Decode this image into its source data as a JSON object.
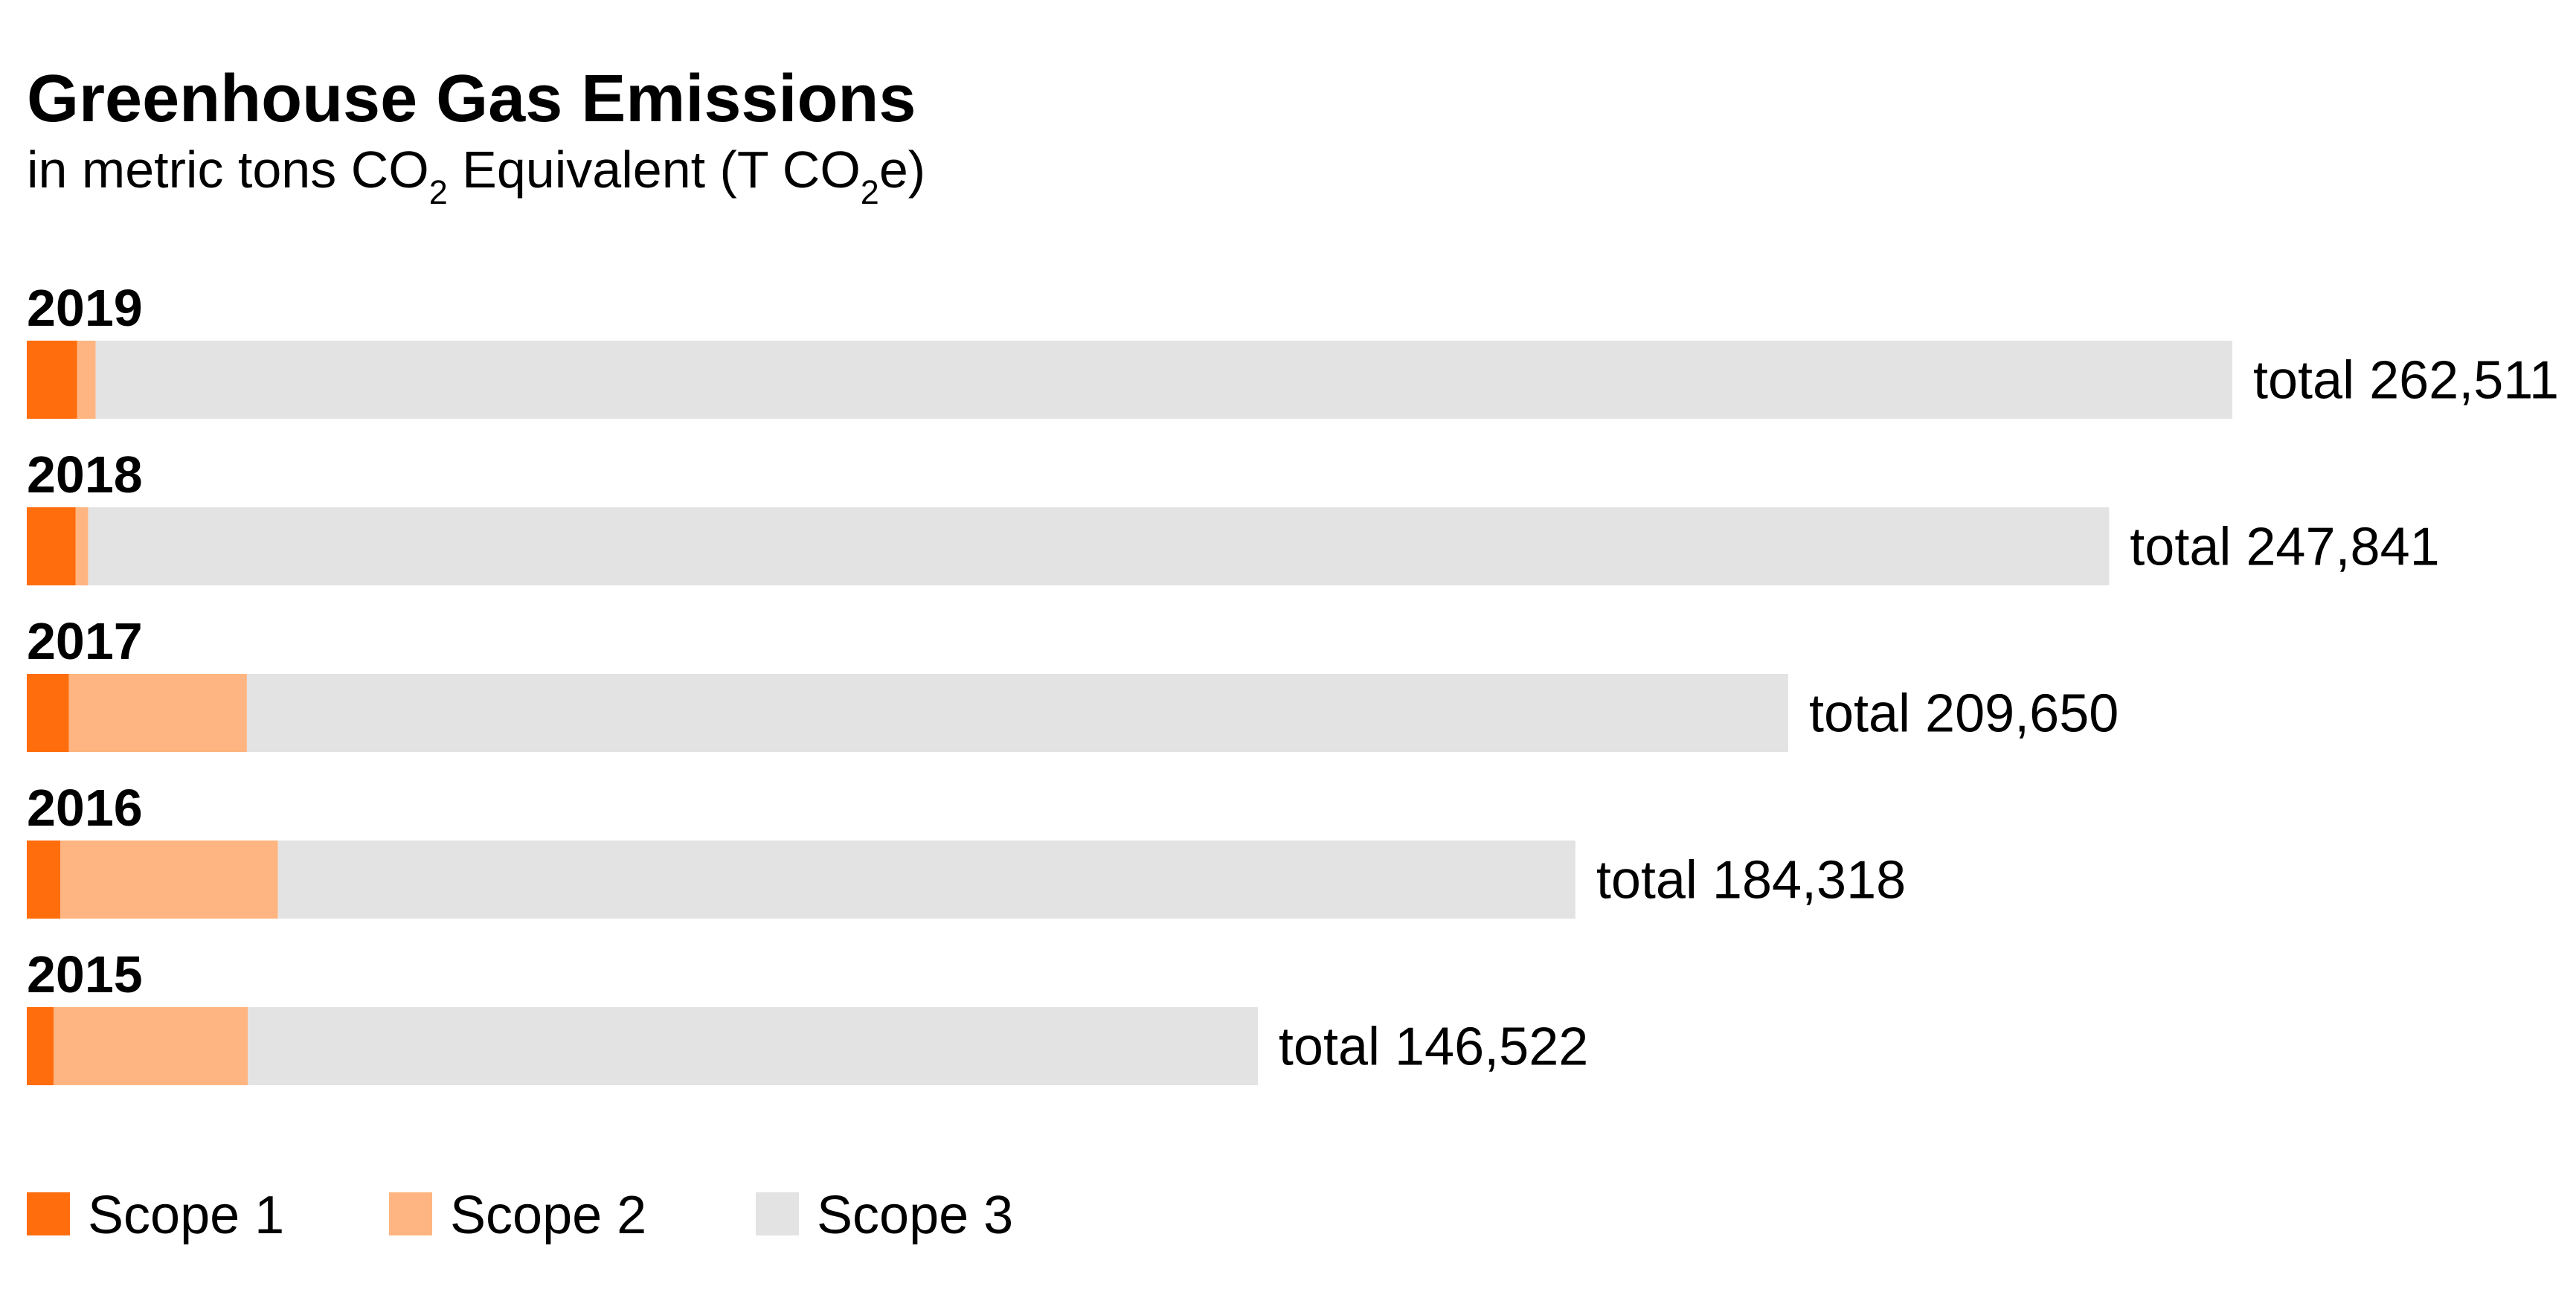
{
  "chart_data": {
    "type": "bar",
    "orientation": "horizontal",
    "stacked": true,
    "title": "Greenhouse Gas Emissions",
    "subtitle": {
      "part1": "in metric tons CO",
      "sub1": "2",
      "part2": " Equivalent (T CO",
      "sub2": "2",
      "part3": "e)"
    },
    "total_prefix": "total",
    "categories": [
      "2019",
      "2018",
      "2017",
      "2016",
      "2015"
    ],
    "totals": [
      262511,
      247841,
      209650,
      184318,
      146522
    ],
    "total_labels": [
      "262,511",
      "247,841",
      "209,650",
      "184,318",
      "146,522"
    ],
    "series": [
      {
        "name": "Scope 1",
        "color": "#ff6d0d",
        "values": [
          6000,
          5800,
          5000,
          4000,
          3200
        ]
      },
      {
        "name": "Scope 2",
        "color": "#ffb581",
        "values": [
          2200,
          1500,
          21200,
          25900,
          23100
        ]
      },
      {
        "name": "Scope 3",
        "color": "#e3e3e3",
        "values": [
          254311,
          240541,
          183450,
          154418,
          120222
        ]
      }
    ],
    "xlim": [
      0,
      262511
    ],
    "grid": false,
    "axes_visible": false,
    "legend_position": "bottom-left"
  }
}
